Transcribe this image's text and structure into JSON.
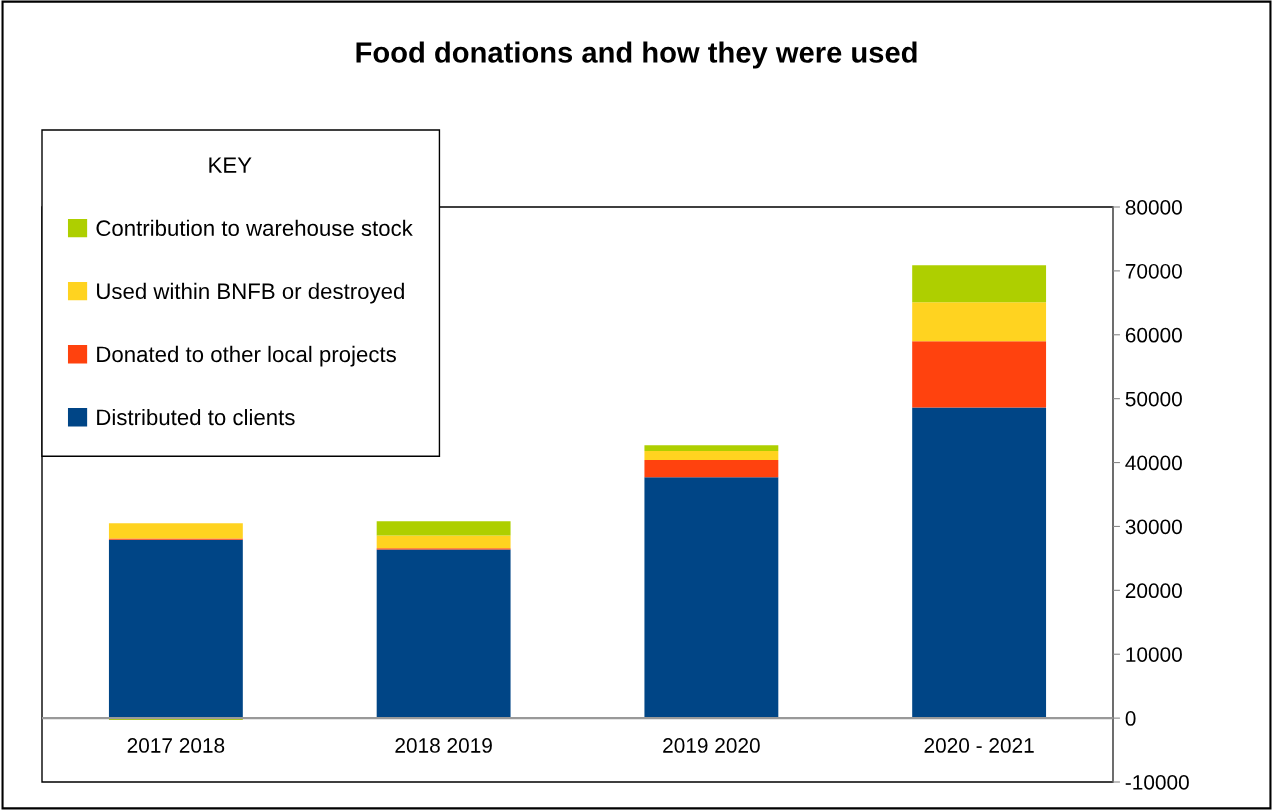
{
  "chart_data": {
    "type": "bar",
    "title": "Food donations and how they were used",
    "legend_title": "KEY",
    "categories": [
      "2017 2018",
      "2018 2019",
      "2019 2020",
      "2020 - 2021"
    ],
    "stacked": true,
    "series": [
      {
        "name": "Distributed to clients",
        "color": "#004586",
        "values": [
          27900,
          26400,
          37700,
          48600
        ]
      },
      {
        "name": "Donated to other local projects",
        "color": "#ff420e",
        "values": [
          200,
          200,
          2700,
          10400
        ]
      },
      {
        "name": "Used within BNFB or destroyed",
        "color": "#ffd320",
        "values": [
          2400,
          2000,
          1400,
          6100
        ]
      },
      {
        "name": "Contribution to warehouse stock",
        "color": "#aecf00",
        "values": [
          -300,
          2200,
          900,
          5800
        ]
      }
    ],
    "ylim": [
      -10000,
      80000
    ],
    "yticks": [
      -10000,
      0,
      10000,
      20000,
      30000,
      40000,
      50000,
      60000,
      70000,
      80000
    ],
    "legend": "top left"
  }
}
